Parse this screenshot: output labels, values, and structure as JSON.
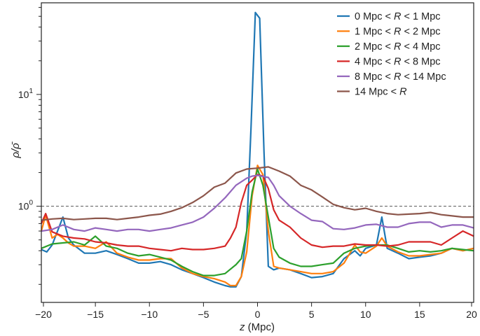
{
  "chart_data": {
    "type": "line",
    "title": "",
    "xlabel": {
      "var": "z",
      "unit": " (Mpc)"
    },
    "ylabel": "ρ/ρ̄",
    "xlim": [
      -20,
      20
    ],
    "ylim": [
      0.138,
      66
    ],
    "yscale": "log",
    "grid": false,
    "legend_position": "top-right",
    "xticks": [
      "−20",
      "−15",
      "−10",
      "−5",
      "0",
      "5",
      "10",
      "15",
      "20"
    ],
    "xtick_values": [
      -20,
      -15,
      -10,
      -5,
      0,
      5,
      10,
      15,
      20
    ],
    "yticks": [
      {
        "value": 1,
        "base": "10",
        "exp": "0"
      },
      {
        "value": 10,
        "base": "10",
        "exp": "1"
      }
    ],
    "reference_line": {
      "y": 1,
      "style": "dashed",
      "color": "#555555"
    },
    "series": [
      {
        "name": "0 Mpc < R < 1 Mpc",
        "label": {
          "pre": "0 Mpc < ",
          "var": "R",
          "post": " < 1 Mpc"
        },
        "color": "#1f77b4",
        "points": [
          [
            -20,
            0.41
          ],
          [
            -19.5,
            0.39
          ],
          [
            -19,
            0.45
          ],
          [
            -18.5,
            0.6
          ],
          [
            -18,
            0.8
          ],
          [
            -17.5,
            0.52
          ],
          [
            -17,
            0.45
          ],
          [
            -16,
            0.38
          ],
          [
            -15,
            0.38
          ],
          [
            -14,
            0.4
          ],
          [
            -13,
            0.37
          ],
          [
            -12,
            0.34
          ],
          [
            -11,
            0.31
          ],
          [
            -10,
            0.31
          ],
          [
            -9,
            0.32
          ],
          [
            -8,
            0.3
          ],
          [
            -7,
            0.27
          ],
          [
            -6,
            0.25
          ],
          [
            -5,
            0.23
          ],
          [
            -4,
            0.21
          ],
          [
            -3,
            0.195
          ],
          [
            -2.5,
            0.19
          ],
          [
            -2,
            0.19
          ],
          [
            -1.5,
            0.235
          ],
          [
            -1,
            0.6
          ],
          [
            -0.6,
            5
          ],
          [
            -0.2,
            54
          ],
          [
            0.2,
            48
          ],
          [
            0.6,
            3
          ],
          [
            1,
            0.29
          ],
          [
            1.5,
            0.27
          ],
          [
            2,
            0.28
          ],
          [
            3,
            0.27
          ],
          [
            4,
            0.25
          ],
          [
            5,
            0.23
          ],
          [
            6,
            0.235
          ],
          [
            7,
            0.25
          ],
          [
            8,
            0.34
          ],
          [
            9,
            0.4
          ],
          [
            9.5,
            0.36
          ],
          [
            10,
            0.42
          ],
          [
            11,
            0.45
          ],
          [
            11.5,
            0.8
          ],
          [
            12,
            0.42
          ],
          [
            13,
            0.38
          ],
          [
            14,
            0.34
          ],
          [
            15,
            0.35
          ],
          [
            16,
            0.36
          ],
          [
            17,
            0.38
          ],
          [
            18,
            0.42
          ],
          [
            19,
            0.4
          ],
          [
            20,
            0.42
          ]
        ]
      },
      {
        "name": "1 Mpc < R < 2 Mpc",
        "label": {
          "pre": "1 Mpc < ",
          "var": "R",
          "post": " < 2 Mpc"
        },
        "color": "#ff7f0e",
        "points": [
          [
            -20,
            0.6
          ],
          [
            -19.6,
            0.83
          ],
          [
            -19,
            0.52
          ],
          [
            -18.5,
            0.56
          ],
          [
            -18,
            0.52
          ],
          [
            -17.5,
            0.47
          ],
          [
            -17,
            0.44
          ],
          [
            -16,
            0.44
          ],
          [
            -15,
            0.42
          ],
          [
            -14,
            0.48
          ],
          [
            -13,
            0.38
          ],
          [
            -12,
            0.35
          ],
          [
            -11,
            0.33
          ],
          [
            -10,
            0.33
          ],
          [
            -9,
            0.34
          ],
          [
            -8,
            0.34
          ],
          [
            -7,
            0.28
          ],
          [
            -6,
            0.25
          ],
          [
            -5,
            0.235
          ],
          [
            -4,
            0.225
          ],
          [
            -3,
            0.21
          ],
          [
            -2.5,
            0.195
          ],
          [
            -2,
            0.195
          ],
          [
            -1.5,
            0.235
          ],
          [
            -1,
            0.39
          ],
          [
            -0.5,
            1.24
          ],
          [
            0,
            2.32
          ],
          [
            0.5,
            1.92
          ],
          [
            1,
            0.6
          ],
          [
            1.5,
            0.29
          ],
          [
            2,
            0.28
          ],
          [
            3,
            0.27
          ],
          [
            4,
            0.26
          ],
          [
            5,
            0.25
          ],
          [
            6,
            0.25
          ],
          [
            7,
            0.26
          ],
          [
            8,
            0.31
          ],
          [
            9,
            0.45
          ],
          [
            9.5,
            0.39
          ],
          [
            10,
            0.38
          ],
          [
            11,
            0.44
          ],
          [
            11.5,
            0.52
          ],
          [
            12,
            0.44
          ],
          [
            13,
            0.39
          ],
          [
            14,
            0.36
          ],
          [
            15,
            0.36
          ],
          [
            16,
            0.37
          ],
          [
            17,
            0.38
          ],
          [
            18,
            0.42
          ],
          [
            19,
            0.4
          ],
          [
            20,
            0.42
          ]
        ]
      },
      {
        "name": "2 Mpc < R < 4 Mpc",
        "label": {
          "pre": "2 Mpc < ",
          "var": "R",
          "post": " < 4 Mpc"
        },
        "color": "#2ca02c",
        "points": [
          [
            -20,
            0.42
          ],
          [
            -19,
            0.46
          ],
          [
            -18,
            0.47
          ],
          [
            -17,
            0.48
          ],
          [
            -16,
            0.45
          ],
          [
            -15,
            0.54
          ],
          [
            -14,
            0.44
          ],
          [
            -13,
            0.42
          ],
          [
            -12,
            0.38
          ],
          [
            -11,
            0.36
          ],
          [
            -10,
            0.37
          ],
          [
            -9,
            0.35
          ],
          [
            -8,
            0.33
          ],
          [
            -7,
            0.29
          ],
          [
            -6,
            0.26
          ],
          [
            -5,
            0.24
          ],
          [
            -4,
            0.24
          ],
          [
            -3,
            0.25
          ],
          [
            -2,
            0.3
          ],
          [
            -1.5,
            0.34
          ],
          [
            -1,
            0.6
          ],
          [
            -0.5,
            1.34
          ],
          [
            0,
            2.15
          ],
          [
            0.5,
            1.54
          ],
          [
            1,
            0.8
          ],
          [
            1.5,
            0.42
          ],
          [
            2,
            0.35
          ],
          [
            3,
            0.31
          ],
          [
            4,
            0.29
          ],
          [
            5,
            0.29
          ],
          [
            6,
            0.3
          ],
          [
            7,
            0.31
          ],
          [
            8,
            0.38
          ],
          [
            9,
            0.42
          ],
          [
            10,
            0.44
          ],
          [
            11,
            0.45
          ],
          [
            12,
            0.45
          ],
          [
            13,
            0.42
          ],
          [
            14,
            0.39
          ],
          [
            15,
            0.4
          ],
          [
            16,
            0.39
          ],
          [
            17,
            0.4
          ],
          [
            18,
            0.42
          ],
          [
            19,
            0.41
          ],
          [
            20,
            0.4
          ]
        ]
      },
      {
        "name": "4 Mpc < R < 8 Mpc",
        "label": {
          "pre": "4 Mpc < ",
          "var": "R",
          "post": " < 8 Mpc"
        },
        "color": "#d62728",
        "points": [
          [
            -20,
            0.7
          ],
          [
            -19.6,
            0.86
          ],
          [
            -19,
            0.59
          ],
          [
            -18,
            0.54
          ],
          [
            -17,
            0.52
          ],
          [
            -16,
            0.51
          ],
          [
            -15,
            0.48
          ],
          [
            -14,
            0.47
          ],
          [
            -13,
            0.45
          ],
          [
            -12,
            0.44
          ],
          [
            -11,
            0.44
          ],
          [
            -10,
            0.42
          ],
          [
            -9,
            0.41
          ],
          [
            -8,
            0.4
          ],
          [
            -7,
            0.42
          ],
          [
            -6,
            0.41
          ],
          [
            -5,
            0.41
          ],
          [
            -4,
            0.42
          ],
          [
            -3,
            0.44
          ],
          [
            -2.5,
            0.52
          ],
          [
            -2,
            0.65
          ],
          [
            -1.5,
            1.08
          ],
          [
            -1,
            1.54
          ],
          [
            -0.5,
            1.71
          ],
          [
            0,
            1.92
          ],
          [
            0.5,
            1.86
          ],
          [
            1,
            1.44
          ],
          [
            1.5,
            0.93
          ],
          [
            2,
            0.75
          ],
          [
            3,
            0.65
          ],
          [
            4,
            0.52
          ],
          [
            5,
            0.45
          ],
          [
            6,
            0.43
          ],
          [
            7,
            0.44
          ],
          [
            8,
            0.44
          ],
          [
            9,
            0.46
          ],
          [
            10,
            0.45
          ],
          [
            11,
            0.45
          ],
          [
            12,
            0.44
          ],
          [
            13,
            0.45
          ],
          [
            14,
            0.48
          ],
          [
            15,
            0.48
          ],
          [
            16,
            0.48
          ],
          [
            17,
            0.45
          ],
          [
            18,
            0.52
          ],
          [
            19,
            0.6
          ],
          [
            20,
            0.54
          ]
        ]
      },
      {
        "name": "8 Mpc < R < 14 Mpc",
        "label": {
          "pre": "8 Mpc < ",
          "var": "R",
          "post": " < 14 Mpc"
        },
        "color": "#9467bd",
        "points": [
          [
            -20,
            0.6
          ],
          [
            -19,
            0.62
          ],
          [
            -18,
            0.68
          ],
          [
            -17,
            0.62
          ],
          [
            -16,
            0.6
          ],
          [
            -15,
            0.64
          ],
          [
            -14,
            0.62
          ],
          [
            -13,
            0.6
          ],
          [
            -12,
            0.62
          ],
          [
            -11,
            0.62
          ],
          [
            -10,
            0.6
          ],
          [
            -9,
            0.62
          ],
          [
            -8,
            0.64
          ],
          [
            -7,
            0.68
          ],
          [
            -6,
            0.72
          ],
          [
            -5,
            0.8
          ],
          [
            -4,
            0.96
          ],
          [
            -3,
            1.19
          ],
          [
            -2,
            1.54
          ],
          [
            -1,
            1.78
          ],
          [
            -0.5,
            1.86
          ],
          [
            0,
            1.89
          ],
          [
            1,
            1.81
          ],
          [
            1.5,
            1.54
          ],
          [
            2,
            1.24
          ],
          [
            3,
            1.0
          ],
          [
            4,
            0.86
          ],
          [
            5,
            0.75
          ],
          [
            6,
            0.73
          ],
          [
            7,
            0.63
          ],
          [
            8,
            0.62
          ],
          [
            9,
            0.64
          ],
          [
            10,
            0.68
          ],
          [
            11,
            0.69
          ],
          [
            12,
            0.65
          ],
          [
            13,
            0.65
          ],
          [
            14,
            0.7
          ],
          [
            15,
            0.72
          ],
          [
            16,
            0.72
          ],
          [
            17,
            0.65
          ],
          [
            18,
            0.68
          ],
          [
            19,
            0.68
          ],
          [
            20,
            0.64
          ]
        ]
      },
      {
        "name": "14 Mpc < R",
        "label": {
          "pre": "14 Mpc < ",
          "var": "R",
          "post": ""
        },
        "color": "#8c564b",
        "points": [
          [
            -20,
            0.75
          ],
          [
            -19,
            0.77
          ],
          [
            -18,
            0.78
          ],
          [
            -17,
            0.76
          ],
          [
            -16,
            0.77
          ],
          [
            -15,
            0.78
          ],
          [
            -14,
            0.78
          ],
          [
            -13,
            0.76
          ],
          [
            -12,
            0.78
          ],
          [
            -11,
            0.8
          ],
          [
            -10,
            0.83
          ],
          [
            -9,
            0.85
          ],
          [
            -8,
            0.9
          ],
          [
            -7,
            0.97
          ],
          [
            -6,
            1.08
          ],
          [
            -5,
            1.24
          ],
          [
            -4,
            1.48
          ],
          [
            -3,
            1.61
          ],
          [
            -2,
            1.98
          ],
          [
            -1,
            2.15
          ],
          [
            0,
            2.19
          ],
          [
            1,
            2.25
          ],
          [
            2,
            2.06
          ],
          [
            3,
            1.86
          ],
          [
            4,
            1.54
          ],
          [
            5,
            1.4
          ],
          [
            6,
            1.21
          ],
          [
            7,
            1.04
          ],
          [
            8,
            0.97
          ],
          [
            9,
            0.93
          ],
          [
            10,
            0.96
          ],
          [
            11,
            0.9
          ],
          [
            12,
            0.86
          ],
          [
            13,
            0.84
          ],
          [
            14,
            0.85
          ],
          [
            15,
            0.86
          ],
          [
            16,
            0.88
          ],
          [
            17,
            0.84
          ],
          [
            18,
            0.82
          ],
          [
            19,
            0.8
          ],
          [
            20,
            0.8
          ]
        ]
      }
    ]
  }
}
